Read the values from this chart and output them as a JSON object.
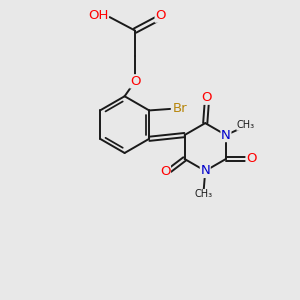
{
  "bg_color": "#e8e8e8",
  "bond_color": "#1a1a1a",
  "bond_width": 1.4,
  "atom_colors": {
    "O": "#ff0000",
    "N": "#0000cc",
    "Br": "#b8860b",
    "C": "#1a1a1a",
    "H": "#666666"
  },
  "font_size": 8.5,
  "fig_size": [
    3.0,
    3.0
  ],
  "dpi": 100,
  "xlim": [
    0,
    10
  ],
  "ylim": [
    0,
    10
  ]
}
